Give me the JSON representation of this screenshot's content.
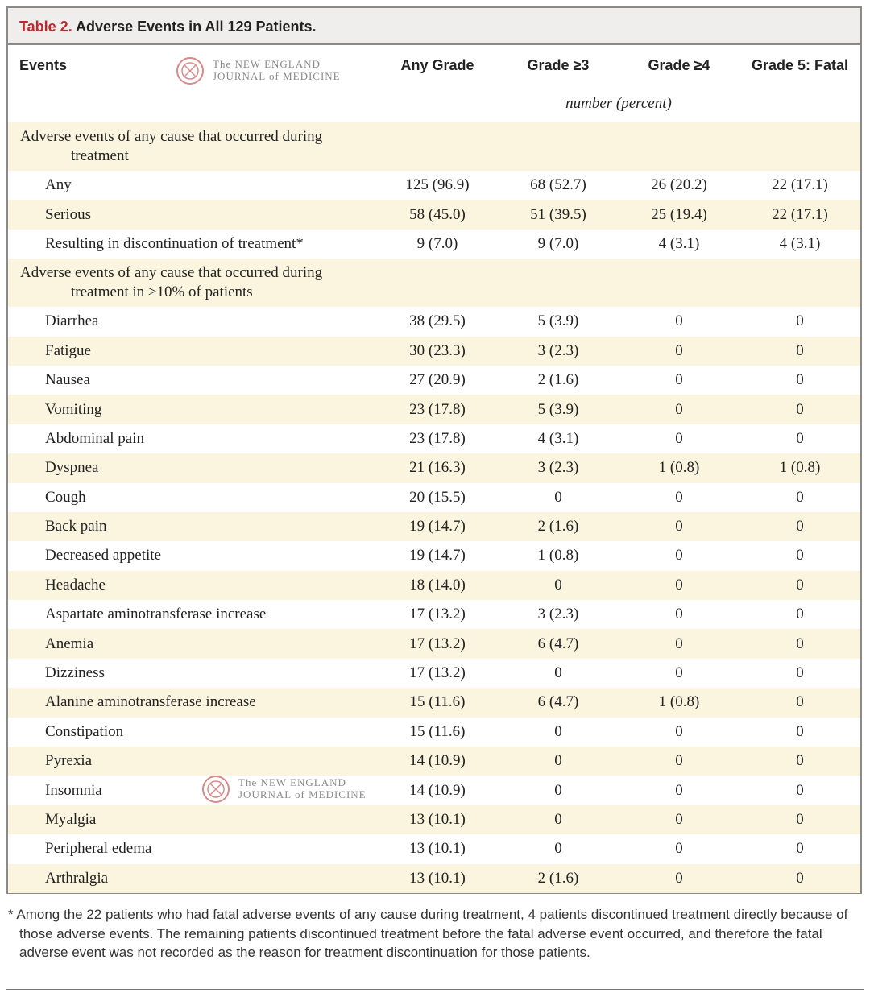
{
  "title_label": "Table 2.",
  "title": "Adverse Events in All 129 Patients.",
  "watermark": [
    "The NEW ENGLAND",
    "JOURNAL of MEDICINE"
  ],
  "columns": [
    "Events",
    "Any Grade",
    "Grade ≥3",
    "Grade ≥4",
    "Grade 5: Fatal"
  ],
  "unit": "number (percent)",
  "rows": [
    {
      "label": "Adverse events of any cause that occurred during treatment"
    },
    {
      "label": "Any",
      "cells": [
        "125 (96.9)",
        "68 (52.7)",
        "26 (20.2)",
        "22 (17.1)"
      ]
    },
    {
      "label": "Serious",
      "cells": [
        "58 (45.0)",
        "51 (39.5)",
        "25 (19.4)",
        "22 (17.1)"
      ]
    },
    {
      "label": "Resulting in discontinuation of treatment*",
      "cells": [
        "9 (7.0)",
        "9 (7.0)",
        "4 (3.1)",
        "4 (3.1)"
      ]
    },
    {
      "label": "Adverse events of any cause that occurred during treatment in ≥10% of patients"
    },
    {
      "label": "Diarrhea",
      "cells": [
        "38 (29.5)",
        "5 (3.9)",
        "0",
        "0"
      ]
    },
    {
      "label": "Fatigue",
      "cells": [
        "30 (23.3)",
        "3 (2.3)",
        "0",
        "0"
      ]
    },
    {
      "label": "Nausea",
      "cells": [
        "27 (20.9)",
        "2 (1.6)",
        "0",
        "0"
      ]
    },
    {
      "label": "Vomiting",
      "cells": [
        "23 (17.8)",
        "5 (3.9)",
        "0",
        "0"
      ]
    },
    {
      "label": "Abdominal pain",
      "cells": [
        "23 (17.8)",
        "4 (3.1)",
        "0",
        "0"
      ]
    },
    {
      "label": "Dyspnea",
      "cells": [
        "21 (16.3)",
        "3 (2.3)",
        "1 (0.8)",
        "1 (0.8)"
      ]
    },
    {
      "label": "Cough",
      "cells": [
        "20 (15.5)",
        "0",
        "0",
        "0"
      ]
    },
    {
      "label": "Back pain",
      "cells": [
        "19 (14.7)",
        "2 (1.6)",
        "0",
        "0"
      ]
    },
    {
      "label": "Decreased appetite",
      "cells": [
        "19 (14.7)",
        "1 (0.8)",
        "0",
        "0"
      ]
    },
    {
      "label": "Headache",
      "cells": [
        "18 (14.0)",
        "0",
        "0",
        "0"
      ]
    },
    {
      "label": "Aspartate aminotransferase increase",
      "cells": [
        "17 (13.2)",
        "3 (2.3)",
        "0",
        "0"
      ]
    },
    {
      "label": "Anemia",
      "cells": [
        "17 (13.2)",
        "6 (4.7)",
        "0",
        "0"
      ]
    },
    {
      "label": "Dizziness",
      "cells": [
        "17 (13.2)",
        "0",
        "0",
        "0"
      ]
    },
    {
      "label": "Alanine aminotransferase increase",
      "cells": [
        "15 (11.6)",
        "6 (4.7)",
        "1 (0.8)",
        "0"
      ]
    },
    {
      "label": "Constipation",
      "cells": [
        "15 (11.6)",
        "0",
        "0",
        "0"
      ]
    },
    {
      "label": "Pyrexia",
      "cells": [
        "14 (10.9)",
        "0",
        "0",
        "0"
      ]
    },
    {
      "label": "Insomnia",
      "cells": [
        "14 (10.9)",
        "0",
        "0",
        "0"
      ]
    },
    {
      "label": "Myalgia",
      "cells": [
        "13 (10.1)",
        "0",
        "0",
        "0"
      ]
    },
    {
      "label": "Peripheral edema",
      "cells": [
        "13 (10.1)",
        "0",
        "0",
        "0"
      ]
    },
    {
      "label": "Arthralgia",
      "cells": [
        "13 (10.1)",
        "2 (1.6)",
        "0",
        "0"
      ]
    }
  ],
  "footnote": "* Among the 22 patients who had fatal adverse events of any cause during treatment, 4 patients discontinued treatment directly because of those adverse events. The remaining patients discontinued treatment before the fatal adverse event occurred, and therefore the fatal adverse event was not recorded as the reason for treatment discontinuation for those patients."
}
